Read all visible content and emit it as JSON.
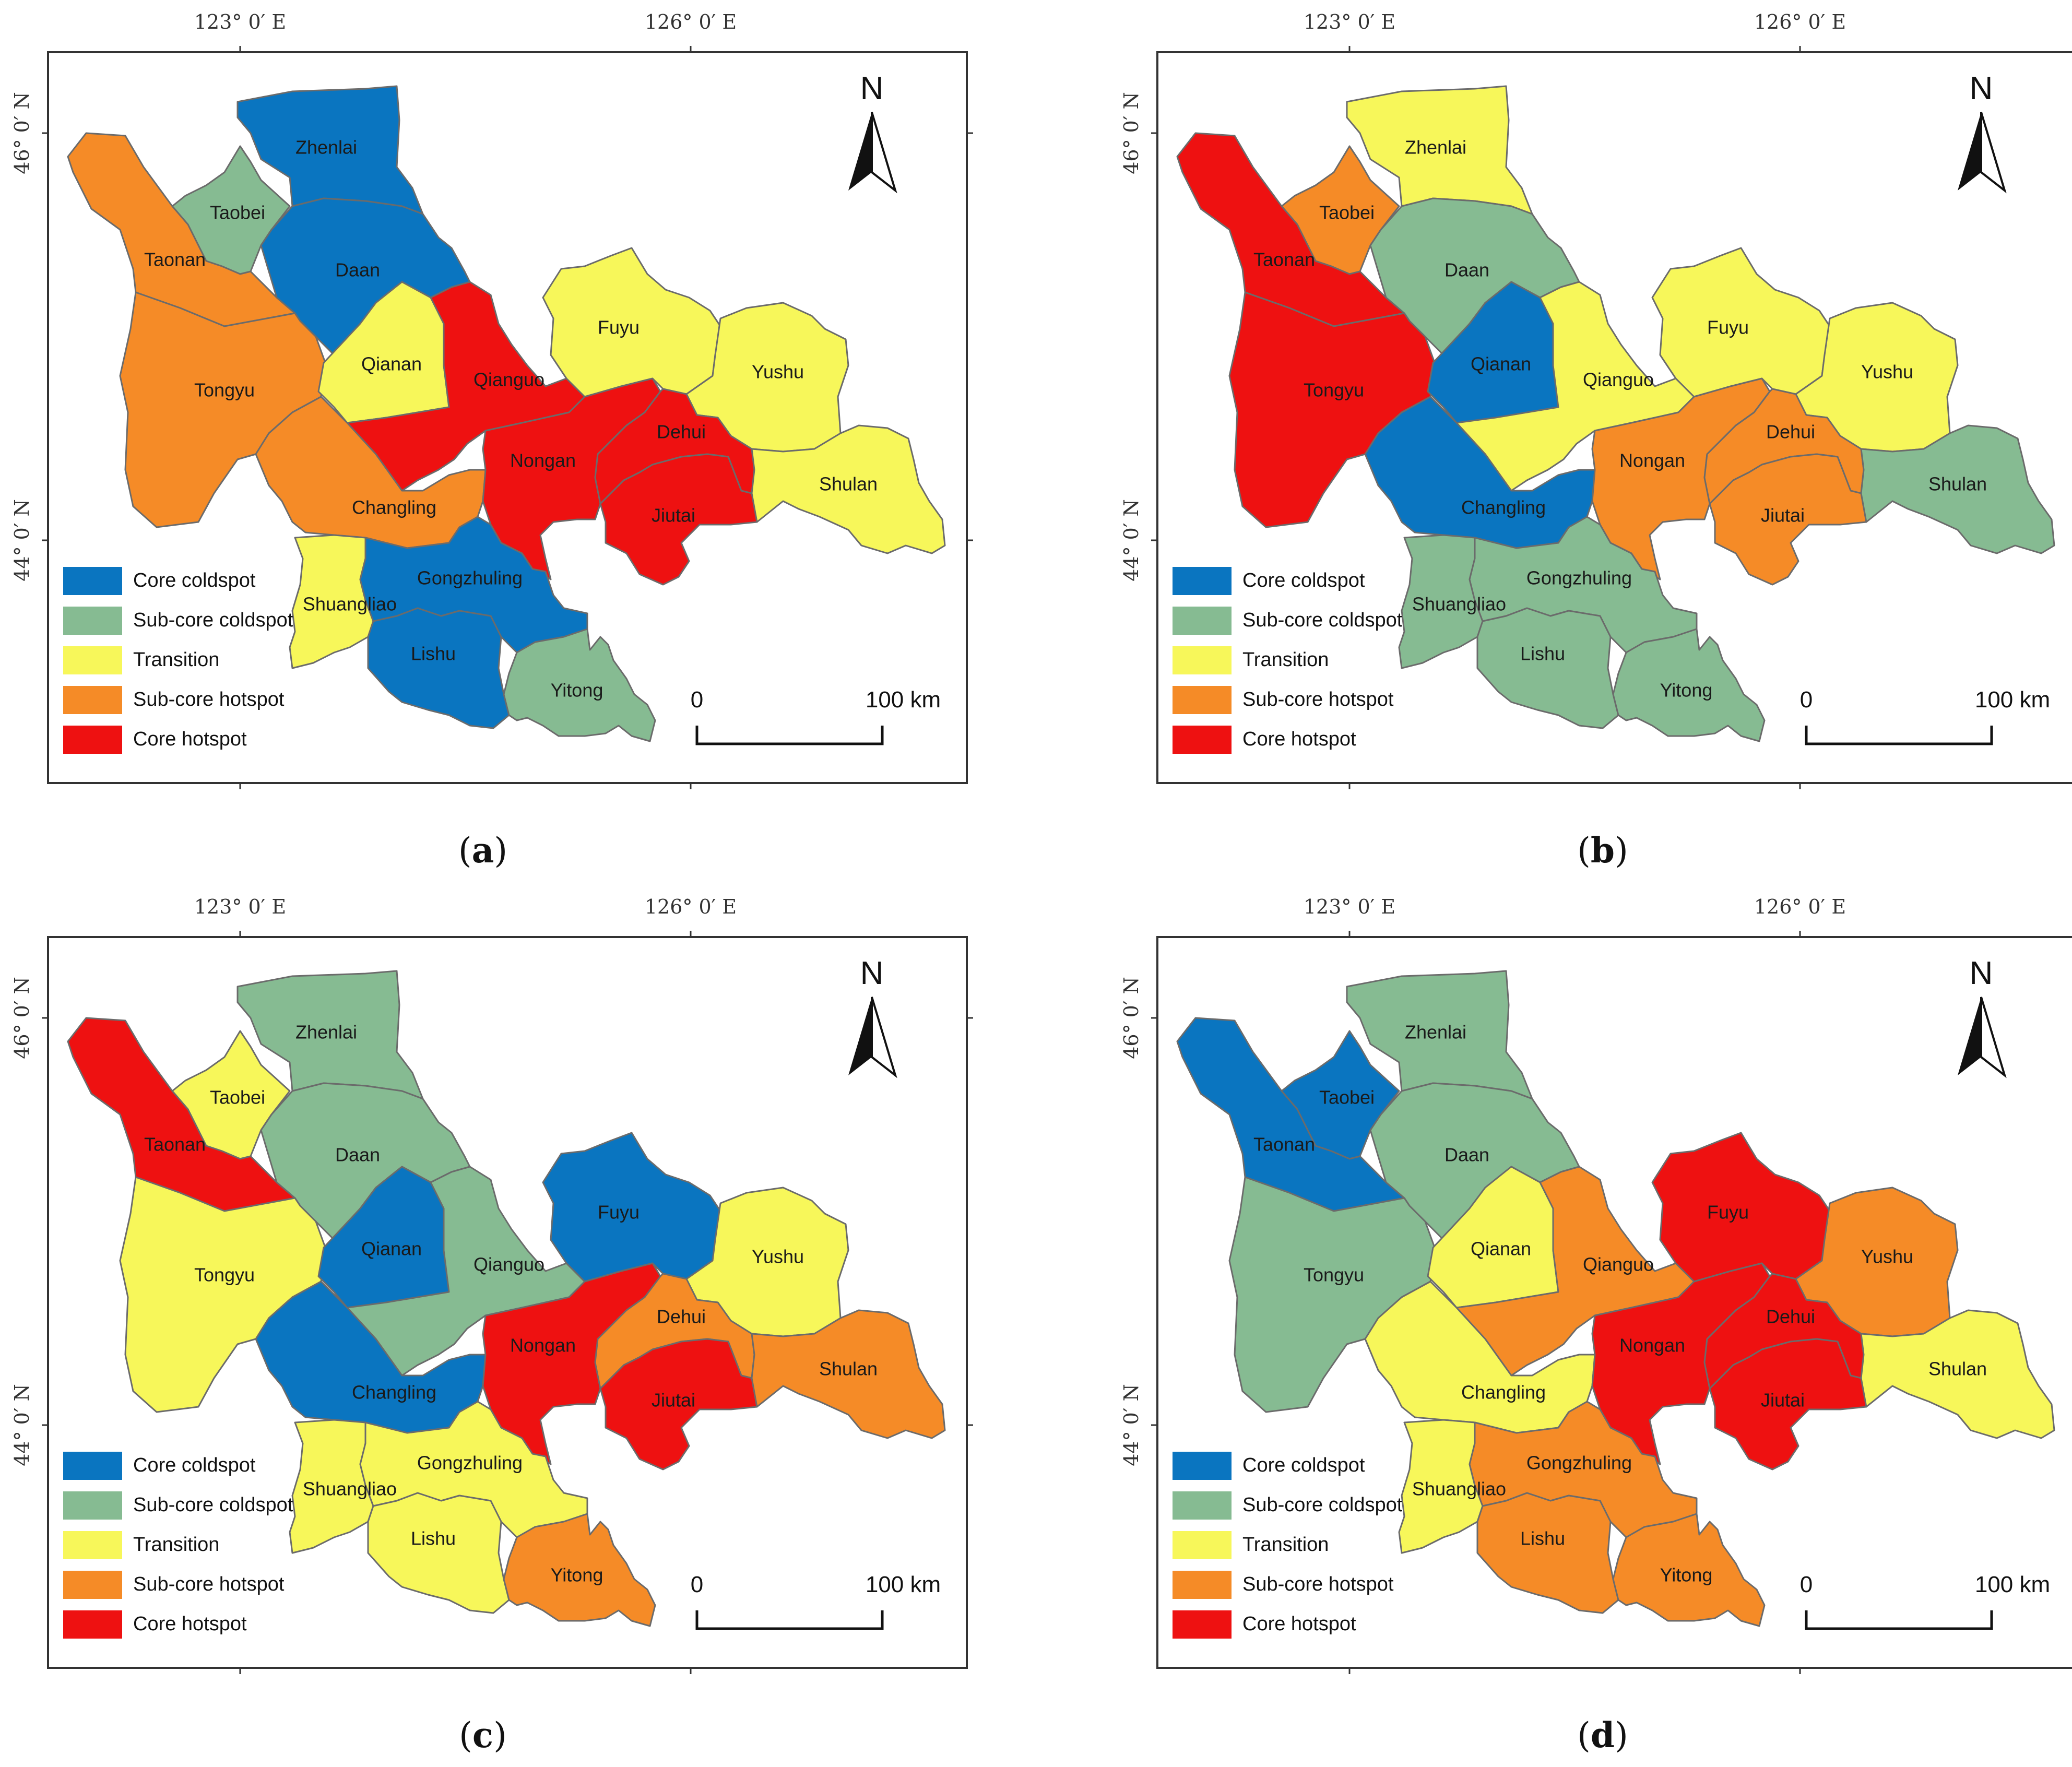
{
  "coords": {
    "lon_left": "123° 0′ E",
    "lon_right": "126° 0′ E",
    "lat_top": "46° 0′ N",
    "lat_bottom": "44° 0′ N"
  },
  "north_label": "N",
  "scale": {
    "start": "0",
    "end": "100 km"
  },
  "legend": [
    {
      "label": "Core coldspot",
      "color": "#0a75c0"
    },
    {
      "label": "Sub-core coldspot",
      "color": "#86bb92"
    },
    {
      "label": "Transition",
      "color": "#f7f75a"
    },
    {
      "label": "Sub-core hotspot",
      "color": "#f58b27"
    },
    {
      "label": "Core hotspot",
      "color": "#ee1111"
    }
  ],
  "region_names": [
    "Zhenlai",
    "Taobei",
    "Taonan",
    "Daan",
    "Tongyu",
    "Qianan",
    "Qianguo",
    "Fuyu",
    "Yushu",
    "Changling",
    "Nongan",
    "Dehui",
    "Jiutai",
    "Shulan",
    "Shuangliao",
    "Gongzhuling",
    "Lishu",
    "Yitong"
  ],
  "panels": [
    {
      "id": "a",
      "caption": "a",
      "classes": {
        "Zhenlai": 0,
        "Taobei": 1,
        "Taonan": 3,
        "Daan": 0,
        "Tongyu": 3,
        "Qianan": 2,
        "Qianguo": 4,
        "Fuyu": 2,
        "Yushu": 2,
        "Changling": 3,
        "Nongan": 4,
        "Dehui": 4,
        "Jiutai": 4,
        "Shulan": 2,
        "Shuangliao": 2,
        "Gongzhuling": 0,
        "Lishu": 0,
        "Yitong": 1
      }
    },
    {
      "id": "b",
      "caption": "b",
      "classes": {
        "Zhenlai": 2,
        "Taobei": 3,
        "Taonan": 4,
        "Daan": 1,
        "Tongyu": 4,
        "Qianan": 0,
        "Qianguo": 2,
        "Fuyu": 2,
        "Yushu": 2,
        "Changling": 0,
        "Nongan": 3,
        "Dehui": 3,
        "Jiutai": 3,
        "Shulan": 1,
        "Shuangliao": 1,
        "Gongzhuling": 1,
        "Lishu": 1,
        "Yitong": 1
      }
    },
    {
      "id": "c",
      "caption": "c",
      "classes": {
        "Zhenlai": 1,
        "Taobei": 2,
        "Taonan": 4,
        "Daan": 1,
        "Tongyu": 2,
        "Qianan": 0,
        "Qianguo": 1,
        "Fuyu": 0,
        "Yushu": 2,
        "Changling": 0,
        "Nongan": 4,
        "Dehui": 3,
        "Jiutai": 4,
        "Shulan": 3,
        "Shuangliao": 2,
        "Gongzhuling": 2,
        "Lishu": 2,
        "Yitong": 3
      }
    },
    {
      "id": "d",
      "caption": "d",
      "classes": {
        "Zhenlai": 1,
        "Taobei": 0,
        "Taonan": 0,
        "Daan": 1,
        "Tongyu": 1,
        "Qianan": 2,
        "Qianguo": 3,
        "Fuyu": 4,
        "Yushu": 3,
        "Changling": 2,
        "Nongan": 4,
        "Dehui": 4,
        "Jiutai": 4,
        "Shulan": 2,
        "Shuangliao": 2,
        "Gongzhuling": 3,
        "Lishu": 3,
        "Yitong": 3
      }
    }
  ]
}
